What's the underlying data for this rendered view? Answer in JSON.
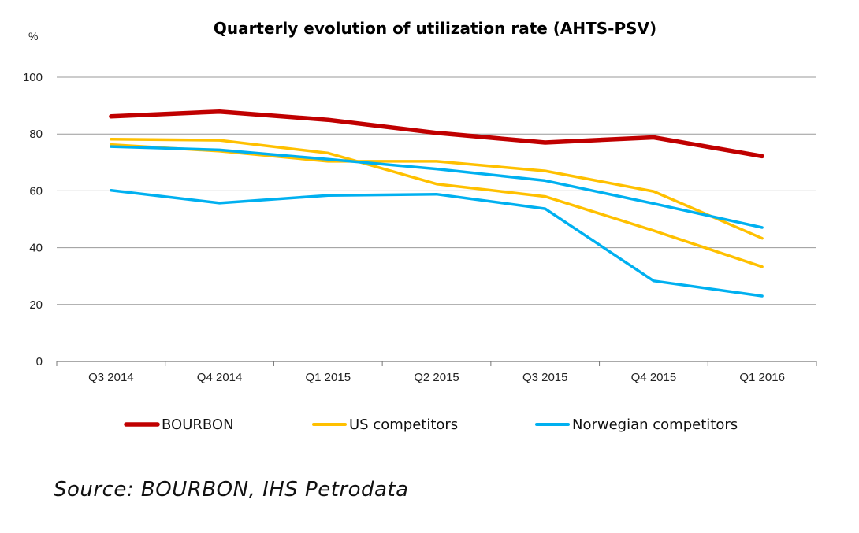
{
  "chart_data": {
    "type": "line",
    "title": "Quarterly evolution of utilization rate (AHTS-PSV)",
    "y_unit": "%",
    "xlabel": "",
    "ylabel": "",
    "ylim": [
      0,
      100
    ],
    "yticks": [
      "0",
      "20",
      "40",
      "60",
      "80",
      "100"
    ],
    "categories": [
      "Q3 2014",
      "Q4 2014",
      "Q1 2015",
      "Q2 2015",
      "Q3 2015",
      "Q4 2015",
      "Q1 2016"
    ],
    "grid": true,
    "legend_position": "bottom",
    "legend": [
      {
        "label": "BOURBON",
        "color": "#c00000"
      },
      {
        "label": "US competitors",
        "color": "#ffc000"
      },
      {
        "label": "Norwegian competitors",
        "color": "#00b0f0"
      }
    ],
    "series": [
      {
        "name": "BOURBON",
        "color": "#c00000",
        "width": "thick",
        "values": [
          86.2,
          87.9,
          85.0,
          80.4,
          77.0,
          78.8,
          72.2
        ]
      },
      {
        "group": "US competitors",
        "color": "#ffc000",
        "values": [
          78.2,
          77.8,
          73.3,
          62.4,
          58.0,
          46.0,
          33.3
        ]
      },
      {
        "group": "US competitors",
        "color": "#ffc000",
        "values": [
          76.3,
          74.0,
          70.4,
          70.4,
          67.0,
          59.8,
          43.3
        ]
      },
      {
        "group": "Norwegian competitors",
        "color": "#00b0f0",
        "values": [
          75.6,
          74.4,
          71.1,
          67.7,
          63.6,
          55.5,
          47.1
        ]
      },
      {
        "group": "Norwegian competitors",
        "color": "#00b0f0",
        "values": [
          60.2,
          55.7,
          58.4,
          58.8,
          53.7,
          28.3,
          23.0
        ]
      }
    ]
  },
  "source": "Source: BOURBON, IHS Petrodata"
}
